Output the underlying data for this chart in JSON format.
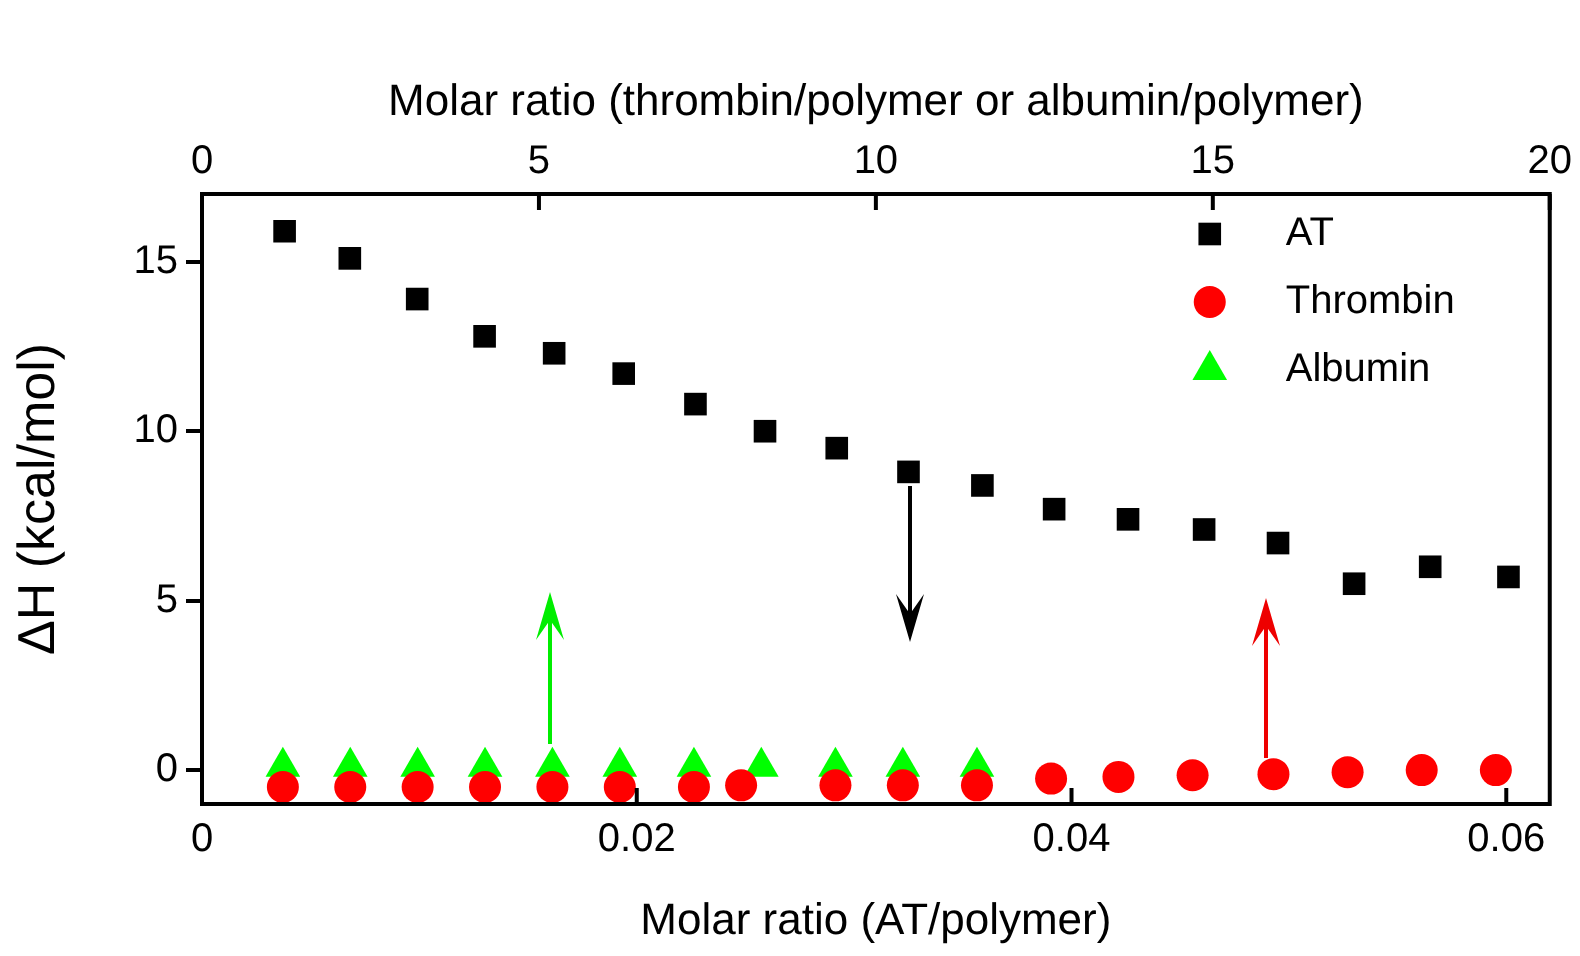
{
  "chart_data": {
    "type": "scatter",
    "xlabel": "Molar ratio (AT/polymer)",
    "x2label": "Molar ratio (thrombin/polymer or albumin/polymer)",
    "ylabel": "ΔH (kcal/mol)",
    "xlim": [
      0,
      0.062
    ],
    "xticks": [
      0,
      0.02,
      0.04,
      0.06
    ],
    "x2lim": [
      0,
      20
    ],
    "x2ticks": [
      0,
      5,
      10,
      15,
      20
    ],
    "ylim": [
      -1,
      17
    ],
    "yticks": [
      0,
      5,
      10,
      15
    ],
    "legend": "top right",
    "series": [
      {
        "name": "AT",
        "color": "#000000",
        "marker": "square",
        "x": [
          0.0038,
          0.0068,
          0.0099,
          0.013,
          0.0162,
          0.0194,
          0.0227,
          0.0259,
          0.0292,
          0.0325,
          0.0359,
          0.0392,
          0.0426,
          0.0461,
          0.0495,
          0.053,
          0.0565,
          0.0601
        ],
        "values": [
          15.9,
          15.1,
          13.9,
          12.8,
          12.3,
          11.7,
          10.8,
          10,
          9.5,
          8.8,
          8.4,
          7.7,
          7.4,
          7.1,
          6.7,
          5.5,
          6,
          5.7
        ]
      },
      {
        "name": "Thrombin",
        "color": "#ff0000",
        "marker": "circle",
        "axis": "x2",
        "x": [
          1.2,
          2.2,
          3.2,
          4.2,
          5.2,
          6.2,
          7.3,
          8,
          9.4,
          10.4,
          11.5,
          12.6,
          13.6,
          14.7,
          15.9,
          17,
          18.1,
          19.2
        ],
        "values": [
          -0.5,
          -0.5,
          -0.5,
          -0.5,
          -0.5,
          -0.5,
          -0.5,
          -0.45,
          -0.45,
          -0.45,
          -0.45,
          -0.25,
          -0.2,
          -0.15,
          -0.12,
          -0.06,
          0,
          0
        ]
      },
      {
        "name": "Albumin",
        "color": "#00ff00",
        "marker": "triangle",
        "axis": "x2",
        "x": [
          1.2,
          2.2,
          3.2,
          4.2,
          5.2,
          6.2,
          7.3,
          8.3,
          9.4,
          10.4,
          11.5
        ],
        "values": [
          0.1,
          0.1,
          0.1,
          0.1,
          0.1,
          0.1,
          0.1,
          0.1,
          0.1,
          0.1,
          0.1
        ]
      }
    ]
  }
}
